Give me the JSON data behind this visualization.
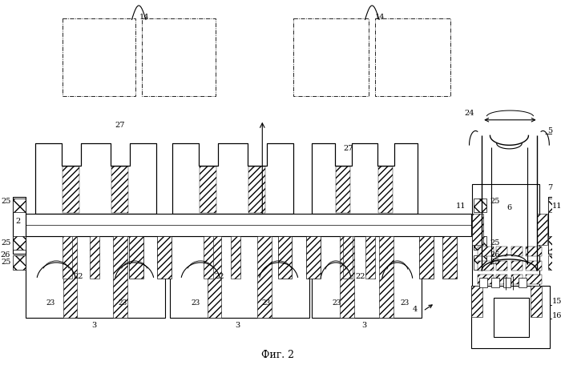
{
  "title": "Фиг. 2",
  "bg_color": "#ffffff",
  "fig_width": 7.0,
  "fig_height": 4.61,
  "dpi": 100
}
